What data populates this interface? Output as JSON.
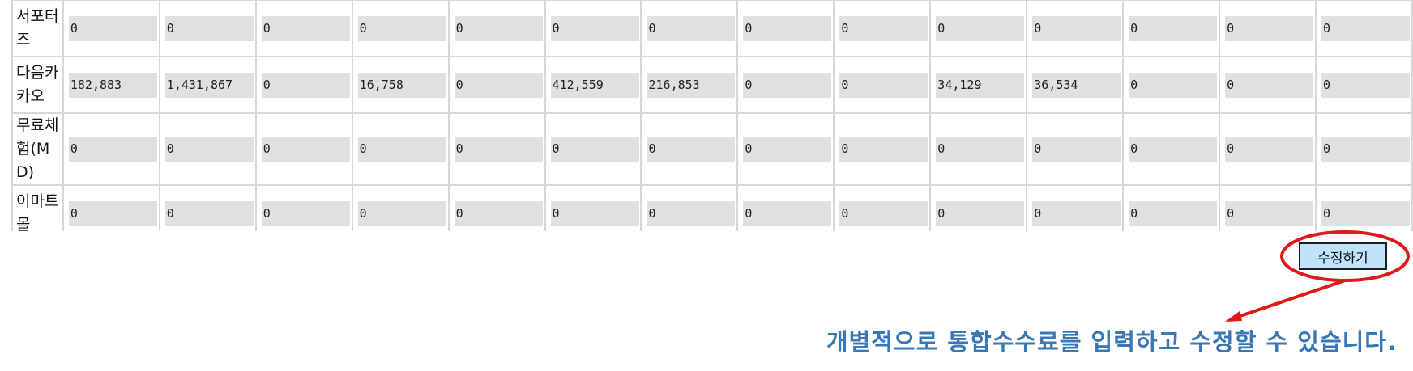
{
  "table": {
    "rows": [
      {
        "label": "서포터즈",
        "values": [
          "0",
          "0",
          "0",
          "0",
          "0",
          "0",
          "0",
          "0",
          "0",
          "0",
          "0",
          "0",
          "0",
          "0"
        ]
      },
      {
        "label": "다음카카오",
        "values": [
          "182,883",
          "1,431,867",
          "0",
          "16,758",
          "0",
          "412,559",
          "216,853",
          "0",
          "0",
          "34,129",
          "36,534",
          "0",
          "0",
          "0"
        ]
      },
      {
        "label": "무료체험(MD)",
        "values": [
          "0",
          "0",
          "0",
          "0",
          "0",
          "0",
          "0",
          "0",
          "0",
          "0",
          "0",
          "0",
          "0",
          "0"
        ]
      },
      {
        "label": "이마트몰",
        "values": [
          "0",
          "0",
          "0",
          "0",
          "0",
          "0",
          "0",
          "0",
          "0",
          "0",
          "0",
          "0",
          "0",
          "0"
        ]
      }
    ]
  },
  "actions": {
    "edit_label": "수정하기"
  },
  "annotation": {
    "text": "개별적으로 통합수수료를 입력하고 수정할 수 있습니다.",
    "color": "#3a78b5",
    "highlight_color": "#e01818"
  }
}
